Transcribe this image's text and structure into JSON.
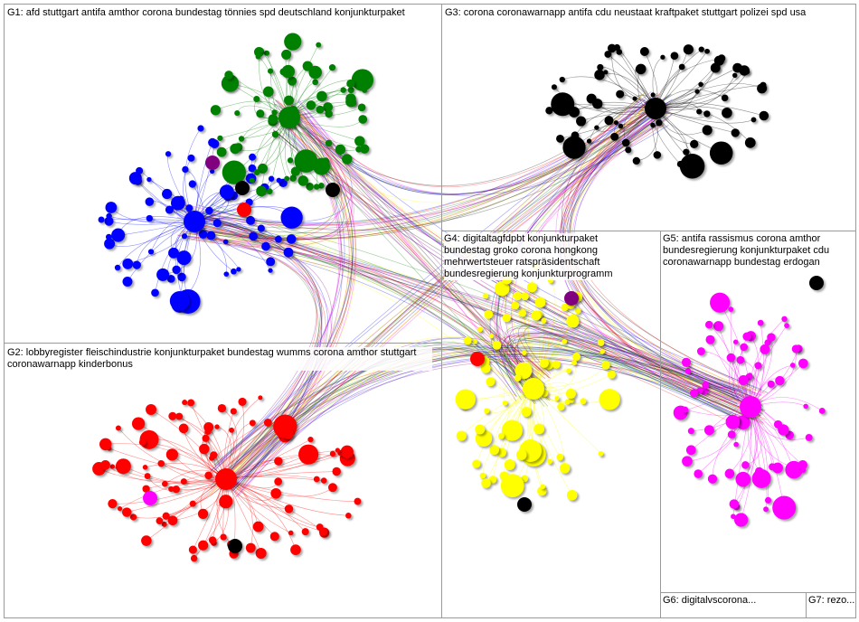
{
  "groups": [
    {
      "id": "G1",
      "label": "G1: afd stuttgart antifa amthor corona bundestag tönnies spd deutschland konjunkturpaket",
      "color": "#008000"
    },
    {
      "id": "G2",
      "label": "G2: lobbyregister fleischindustrie konjunkturpaket bundestag wumms corona amthor stuttgart coronawarnapp kinderbonus",
      "color": "#ff0000"
    },
    {
      "id": "G3",
      "label": "G3: corona coronawarnapp antifa cdu neustaat kraftpaket stuttgart polizei spd usa",
      "color": "#000000"
    },
    {
      "id": "G4",
      "label": "G4: digitaltagfdpbt konjunkturpaket bundestag groko corona hongkong mehrwertsteuer ratspräsidentschaft bundesregierung konjunkturprogramm",
      "color": "#ffff00"
    },
    {
      "id": "G5",
      "label": "G5: antifa rassismus corona amthor bundesregierung konjunkturpaket cdu coronawarnapp bundestag erdogan",
      "color": "#ff00ff"
    },
    {
      "id": "G6",
      "label": "G6: digitalvscorona...",
      "color": "#ff0000"
    },
    {
      "id": "G7",
      "label": "G7: rezo...",
      "color": "#0000ff"
    }
  ],
  "node_colors": {
    "blue": "#0000ff",
    "green": "#008000",
    "black": "#000000",
    "red": "#ff0000",
    "yellow": "#ffff00",
    "magenta": "#ff00ff",
    "purple": "#800080"
  }
}
